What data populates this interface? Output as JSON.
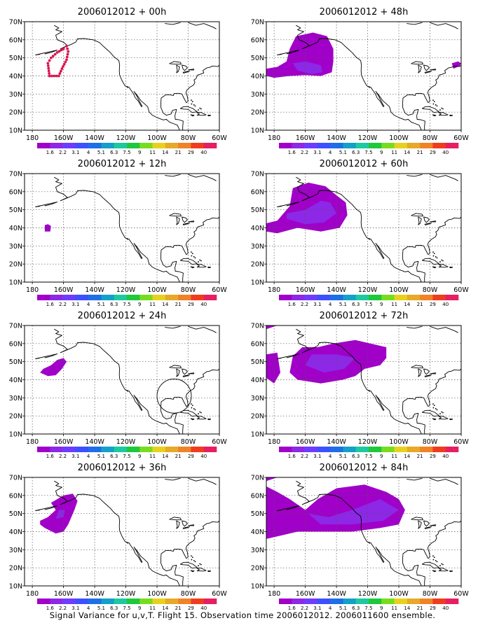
{
  "caption": "Signal Variance for u,v,T. Flight 15. Observation time 2006012012. 2006011600 ensemble.",
  "lat_labels": [
    "70N",
    "60N",
    "50N",
    "40N",
    "30N",
    "20N",
    "10N"
  ],
  "lon_labels": [
    "180",
    "160W",
    "140W",
    "120W",
    "100W",
    "80W",
    "60W"
  ],
  "colorbar": {
    "colors": [
      "#a000c8",
      "#8c28e6",
      "#6e3cff",
      "#3c50ff",
      "#1e6ee6",
      "#14a0c8",
      "#1ec8a0",
      "#1ec83c",
      "#78dc1e",
      "#e6d21e",
      "#e6aa28",
      "#f08228",
      "#f03c1e",
      "#e61e64"
    ],
    "labels": [
      "1.6",
      "2.2",
      "3.1",
      "4",
      "5.1",
      "6.3",
      "7.5",
      "9",
      "11",
      "14",
      "21",
      "29",
      "40"
    ]
  },
  "panels": [
    {
      "title": "2006012012 + 00h",
      "lead_hours": 0
    },
    {
      "title": "2006012012 + 48h",
      "lead_hours": 48
    },
    {
      "title": "2006012012 + 12h",
      "lead_hours": 12
    },
    {
      "title": "2006012012 + 60h",
      "lead_hours": 60
    },
    {
      "title": "2006012012 + 24h",
      "lead_hours": 24
    },
    {
      "title": "2006012012 + 72h",
      "lead_hours": 72
    },
    {
      "title": "2006012012 + 36h",
      "lead_hours": 36
    },
    {
      "title": "2006012012 + 84h",
      "lead_hours": 84
    }
  ],
  "map_extent": {
    "lon_min": -185,
    "lon_max": -60,
    "lat_min": 10,
    "lat_max": 70
  },
  "flight_track_color": "#dc1450",
  "variance_colors": {
    "outer": "#a000c8",
    "inner": "#8c28e6"
  }
}
